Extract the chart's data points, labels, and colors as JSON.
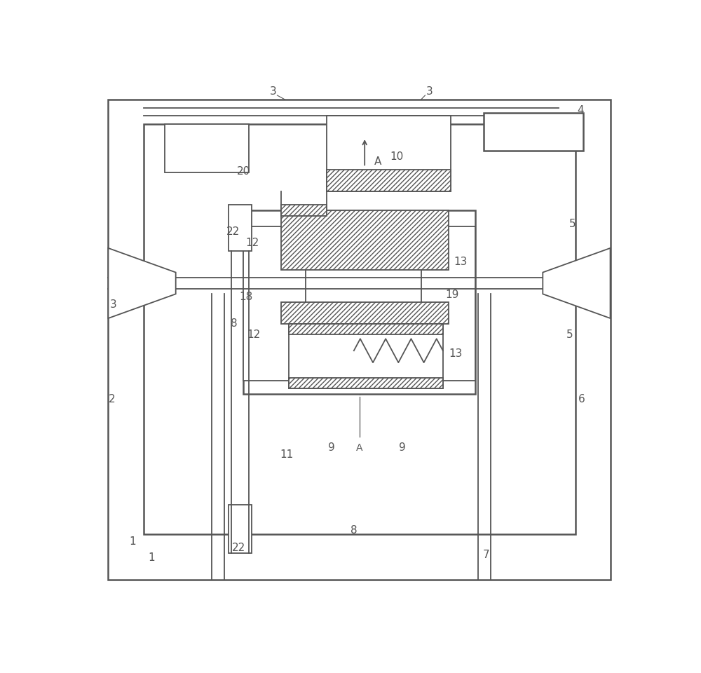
{
  "bg_color": "#ffffff",
  "lc": "#555555",
  "lw": 1.3,
  "tlw": 1.8,
  "fig_width": 10.0,
  "fig_height": 9.6,
  "dpi": 100
}
